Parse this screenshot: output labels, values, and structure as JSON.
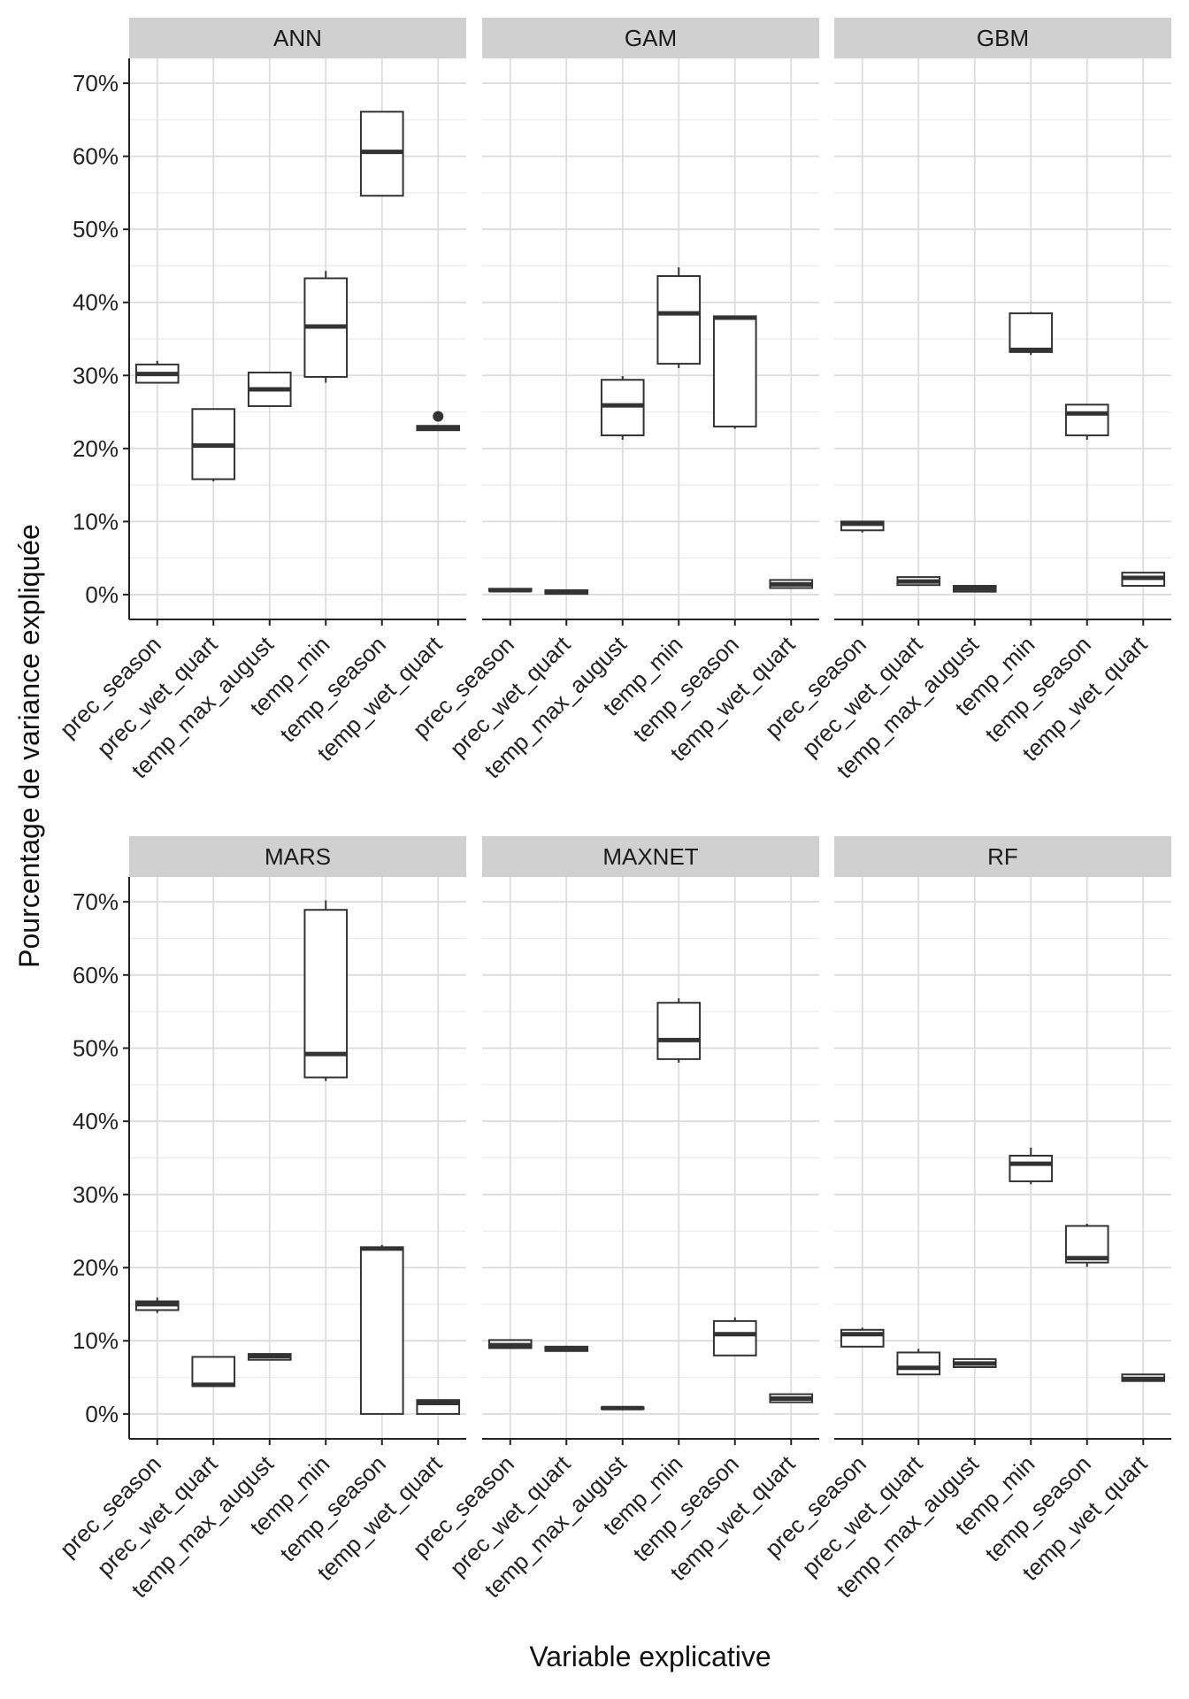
{
  "chart_data": {
    "type": "boxplot",
    "layout": "facet grid 3 columns x 2 rows",
    "xlabel": "Variable explicative",
    "ylabel": "Pourcentage de variance expliquée",
    "ylim": [
      -3.4,
      73.4
    ],
    "yticks": [
      0,
      10,
      20,
      30,
      40,
      50,
      60,
      70
    ],
    "ytick_labels": [
      "0%",
      "10%",
      "20%",
      "30%",
      "40%",
      "50%",
      "60%",
      "70%"
    ],
    "categories": [
      "prec_season",
      "prec_wet_quart",
      "temp_max_august",
      "temp_min",
      "temp_season",
      "temp_wet_quart"
    ],
    "grid": true,
    "panels": [
      {
        "name": "ANN",
        "boxes": [
          {
            "min": 29.0,
            "q1": 29.0,
            "median": 30.2,
            "q3": 31.5,
            "max": 32.0
          },
          {
            "min": 15.5,
            "q1": 15.8,
            "median": 20.4,
            "q3": 25.4,
            "max": 25.4
          },
          {
            "min": 25.8,
            "q1": 25.8,
            "median": 28.1,
            "q3": 30.4,
            "max": 30.4
          },
          {
            "min": 29.0,
            "q1": 29.8,
            "median": 36.7,
            "q3": 43.3,
            "max": 44.3
          },
          {
            "min": 54.6,
            "q1": 54.6,
            "median": 60.6,
            "q3": 66.1,
            "max": 66.1
          },
          {
            "min": 22.5,
            "q1": 22.5,
            "median": 22.8,
            "q3": 23.1,
            "max": 23.2,
            "outliers": [
              24.4
            ]
          }
        ]
      },
      {
        "name": "GAM",
        "boxes": [
          {
            "min": 0.5,
            "q1": 0.5,
            "median": 0.6,
            "q3": 0.8,
            "max": 0.8
          },
          {
            "min": 0.1,
            "q1": 0.1,
            "median": 0.3,
            "q3": 0.6,
            "max": 0.6
          },
          {
            "min": 21.2,
            "q1": 21.8,
            "median": 25.9,
            "q3": 29.4,
            "max": 29.9
          },
          {
            "min": 31.0,
            "q1": 31.6,
            "median": 38.5,
            "q3": 43.6,
            "max": 44.8
          },
          {
            "min": 22.7,
            "q1": 23.0,
            "median": 37.9,
            "q3": 38.1,
            "max": 38.2
          },
          {
            "min": 0.9,
            "q1": 0.9,
            "median": 1.4,
            "q3": 2.0,
            "max": 2.0
          }
        ]
      },
      {
        "name": "GBM",
        "boxes": [
          {
            "min": 8.5,
            "q1": 8.8,
            "median": 9.7,
            "q3": 10.0,
            "max": 10.0
          },
          {
            "min": 1.3,
            "q1": 1.3,
            "median": 1.8,
            "q3": 2.4,
            "max": 2.4
          },
          {
            "min": 0.4,
            "q1": 0.4,
            "median": 0.8,
            "q3": 1.2,
            "max": 1.2
          },
          {
            "min": 32.8,
            "q1": 33.2,
            "median": 33.5,
            "q3": 38.5,
            "max": 38.7
          },
          {
            "min": 21.2,
            "q1": 21.8,
            "median": 24.8,
            "q3": 26.0,
            "max": 26.0
          },
          {
            "min": 1.2,
            "q1": 1.2,
            "median": 2.3,
            "q3": 3.0,
            "max": 3.0
          }
        ]
      },
      {
        "name": "MARS",
        "boxes": [
          {
            "min": 13.8,
            "q1": 14.2,
            "median": 15.0,
            "q3": 15.4,
            "max": 15.9
          },
          {
            "min": 3.8,
            "q1": 3.8,
            "median": 4.0,
            "q3": 7.8,
            "max": 7.8
          },
          {
            "min": 7.4,
            "q1": 7.4,
            "median": 7.9,
            "q3": 8.2,
            "max": 8.2
          },
          {
            "min": 45.5,
            "q1": 46.0,
            "median": 49.2,
            "q3": 68.9,
            "max": 70.2
          },
          {
            "min": 0.0,
            "q1": 0.0,
            "median": 22.6,
            "q3": 22.8,
            "max": 23.1
          },
          {
            "min": 0.0,
            "q1": 0.0,
            "median": 1.5,
            "q3": 1.9,
            "max": 1.9
          }
        ]
      },
      {
        "name": "MAXNET",
        "boxes": [
          {
            "min": 9.0,
            "q1": 9.0,
            "median": 9.4,
            "q3": 10.1,
            "max": 10.1
          },
          {
            "min": 8.6,
            "q1": 8.6,
            "median": 8.9,
            "q3": 9.2,
            "max": 9.2
          },
          {
            "min": 0.7,
            "q1": 0.7,
            "median": 0.8,
            "q3": 0.9,
            "max": 0.9
          },
          {
            "min": 48.0,
            "q1": 48.5,
            "median": 51.1,
            "q3": 56.2,
            "max": 56.8
          },
          {
            "min": 7.9,
            "q1": 8.0,
            "median": 10.9,
            "q3": 12.7,
            "max": 13.2
          },
          {
            "min": 1.6,
            "q1": 1.6,
            "median": 2.1,
            "q3": 2.7,
            "max": 2.7
          }
        ]
      },
      {
        "name": "RF",
        "boxes": [
          {
            "min": 9.2,
            "q1": 9.2,
            "median": 10.9,
            "q3": 11.5,
            "max": 11.8
          },
          {
            "min": 5.4,
            "q1": 5.4,
            "median": 6.3,
            "q3": 8.4,
            "max": 8.9
          },
          {
            "min": 6.4,
            "q1": 6.4,
            "median": 6.9,
            "q3": 7.5,
            "max": 7.5
          },
          {
            "min": 31.4,
            "q1": 31.8,
            "median": 34.2,
            "q3": 35.3,
            "max": 36.4
          },
          {
            "min": 20.1,
            "q1": 20.7,
            "median": 21.3,
            "q3": 25.7,
            "max": 26.0
          },
          {
            "min": 4.5,
            "q1": 4.5,
            "median": 4.8,
            "q3": 5.4,
            "max": 5.4
          }
        ]
      }
    ]
  }
}
